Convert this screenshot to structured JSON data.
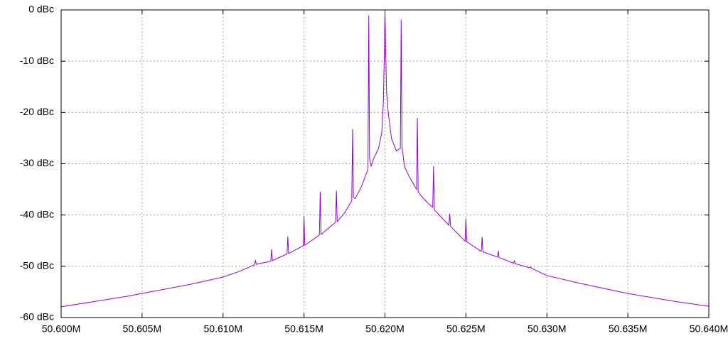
{
  "chart_data": {
    "type": "line",
    "color": "#9400d3",
    "grid": true,
    "xlim": [
      50600000,
      50640000
    ],
    "xticks": [
      {
        "value": 50600000,
        "label": "50.600M"
      },
      {
        "value": 50605000,
        "label": "50.605M"
      },
      {
        "value": 50610000,
        "label": "50.610M"
      },
      {
        "value": 50615000,
        "label": "50.615M"
      },
      {
        "value": 50620000,
        "label": "50.620M"
      },
      {
        "value": 50625000,
        "label": "50.625M"
      },
      {
        "value": 50630000,
        "label": "50.630M"
      },
      {
        "value": 50635000,
        "label": "50.635M"
      },
      {
        "value": 50640000,
        "label": "50.640M"
      }
    ],
    "ylim": [
      -60,
      0
    ],
    "yticks": [
      {
        "value": -60,
        "label": "-60 dBc"
      },
      {
        "value": -50,
        "label": "-50 dBc"
      },
      {
        "value": -40,
        "label": "-40 dBc"
      },
      {
        "value": -30,
        "label": "-30 dBc"
      },
      {
        "value": -20,
        "label": "-20 dBc"
      },
      {
        "value": -10,
        "label": "-10 dBc"
      },
      {
        "value": 0,
        "label": "0 dBc"
      }
    ],
    "x": [
      50600000,
      50602000,
      50604000,
      50606000,
      50608000,
      50610000,
      50611000,
      50611950,
      50612000,
      50612050,
      50612950,
      50613000,
      50613050,
      50613950,
      50614000,
      50614050,
      50614950,
      50615000,
      50615050,
      50615950,
      50616000,
      50616050,
      50616950,
      50617000,
      50617050,
      50617500,
      50617950,
      50618000,
      50618050,
      50618150,
      50618500,
      50618900,
      50618950,
      50619000,
      50619050,
      50619150,
      50619300,
      50619600,
      50619800,
      50619900,
      50619950,
      50620000,
      50620050,
      50620100,
      50620200,
      50620400,
      50620700,
      50620950,
      50621000,
      50621050,
      50621200,
      50621500,
      50621950,
      50622000,
      50622050,
      50622300,
      50622600,
      50622950,
      50623000,
      50623050,
      50623500,
      50623950,
      50624000,
      50624050,
      50624950,
      50625000,
      50625050,
      50625950,
      50626000,
      50626050,
      50626950,
      50627000,
      50627050,
      50627950,
      50628000,
      50628050,
      50628950,
      50629000,
      50629050,
      50630000,
      50632000,
      50635000,
      50638000,
      50640000
    ],
    "values": [
      -57.9,
      -56.9,
      -55.9,
      -54.7,
      -53.5,
      -52.1,
      -51.0,
      -49.7,
      -48.8,
      -49.6,
      -49.0,
      -46.7,
      -48.9,
      -47.6,
      -44.2,
      -47.5,
      -46.0,
      -40.3,
      -45.9,
      -43.9,
      -35.5,
      -43.8,
      -41.4,
      -35.3,
      -41.3,
      -39.6,
      -37.2,
      -23.3,
      -36.5,
      -36.8,
      -34.8,
      -31.5,
      -31.0,
      -1.1,
      -29.0,
      -30.5,
      -29.0,
      -27.0,
      -24.0,
      -18.0,
      -10.0,
      0,
      -9.0,
      -16.0,
      -20.0,
      -25.0,
      -27.5,
      -27.0,
      -1.9,
      -26.5,
      -30.5,
      -32.5,
      -35.0,
      -21.1,
      -35.5,
      -36.5,
      -37.5,
      -38.5,
      -30.5,
      -39.0,
      -40.5,
      -42.0,
      -39.8,
      -42.2,
      -45.1,
      -40.7,
      -45.2,
      -47.1,
      -44.3,
      -47.2,
      -48.2,
      -47.0,
      -48.3,
      -49.4,
      -48.9,
      -49.5,
      -50.3,
      -50.1,
      -50.4,
      -51.8,
      -53.3,
      -55.3,
      -56.9,
      -57.8
    ]
  }
}
